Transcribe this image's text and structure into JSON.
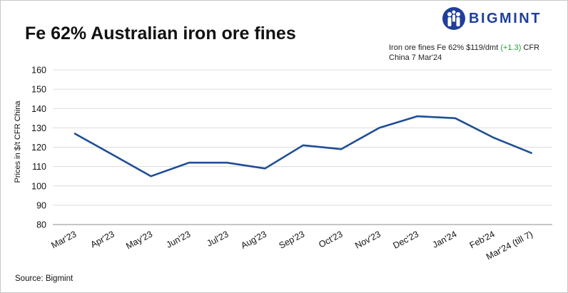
{
  "logo": {
    "text": "BIGMINT",
    "icon": "bigmint-people-icon",
    "color": "#1f3f9a"
  },
  "source": "Source: Bigmint",
  "annotation": {
    "prefix": "Iron ore fines Fe 62% $119/dmt ",
    "change": "(+1.3)",
    "suffix": " CFR China 7 Mar'24",
    "change_color": "#22a33a"
  },
  "chart_data": {
    "type": "line",
    "title": "Fe 62% Australian iron ore fines",
    "ylabel": "Prices in $/t CFR China",
    "xlabel": "",
    "categories": [
      "Mar'23",
      "Apr'23",
      "May'23",
      "Jun'23",
      "Jul'23",
      "Aug'23",
      "Sep'23",
      "Oct'23",
      "Nov'23",
      "Dec'23",
      "Jan'24",
      "Feb'24",
      "Mar'24 (till 7)"
    ],
    "series": [
      {
        "values": [
          127,
          116,
          105,
          112,
          112,
          109,
          121,
          119,
          130,
          136,
          135,
          125,
          117
        ],
        "color": "#1f4e96"
      }
    ],
    "ylim": [
      80,
      160
    ],
    "yticks": [
      80,
      90,
      100,
      110,
      120,
      130,
      140,
      150,
      160
    ],
    "grid": "horizontal",
    "legend": "none"
  }
}
